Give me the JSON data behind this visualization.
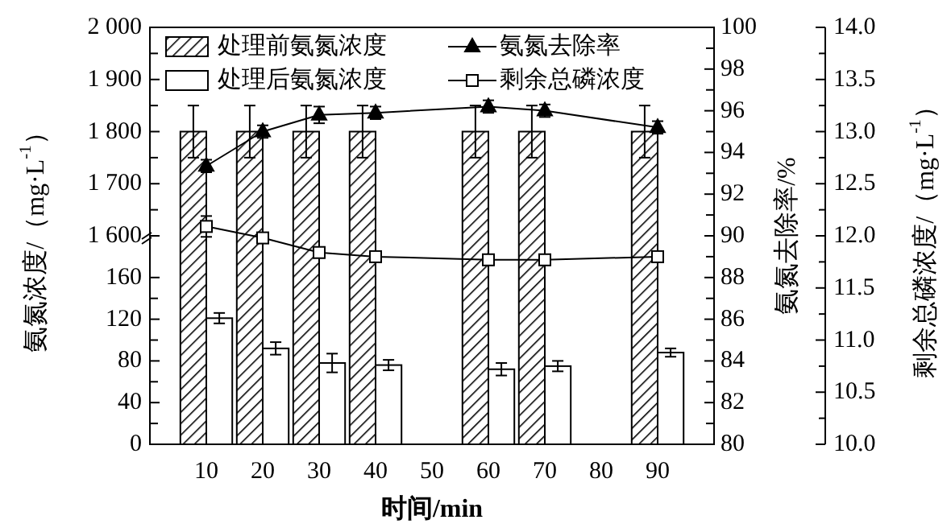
{
  "chart_data": [
    {
      "type": "bar",
      "ylabel": "氨氮浓度/（mg·L$^{-1}$）",
      "xlim": [
        0,
        100
      ],
      "x": [
        10,
        20,
        30,
        40,
        60,
        70,
        90
      ],
      "tick_labels": "y",
      "legend": "top",
      "ylim": [
        1600,
        2000
      ],
      "yticks": [
        {
          "value": 1600,
          "label": "1 600"
        },
        {
          "value": 1650,
          "label": null
        },
        {
          "value": 1700,
          "label": "1 700"
        },
        {
          "value": 1750,
          "label": null
        },
        {
          "value": 1800,
          "label": "1 800"
        },
        {
          "value": 1850,
          "label": null
        },
        {
          "value": 1900,
          "label": "1 900"
        },
        {
          "value": 1950,
          "label": null
        },
        {
          "value": 2000,
          "label": "2 000"
        }
      ],
      "series": [
        {
          "name": "处理前氨氮浓度",
          "color": "#000000",
          "values": [
            1800,
            1800,
            1800,
            1800,
            1800,
            1800,
            1800
          ],
          "errors": [
            50,
            50,
            50,
            50,
            50,
            50,
            50
          ]
        },
        {
          "color": "#ffffff",
          "values": [
            null,
            null,
            null,
            null,
            null,
            null,
            null
          ]
        }
      ]
    },
    {
      "type": "bar",
      "xlim": [
        0,
        100
      ],
      "x": [
        10,
        20,
        30,
        40,
        60,
        70,
        90
      ],
      "tick_labels": "y",
      "legend": "top",
      "ylim": [
        0,
        160
      ],
      "yticks": [
        0,
        {
          "value": 20,
          "label": null
        },
        40,
        {
          "value": 60,
          "label": null
        },
        80,
        {
          "value": 100,
          "label": null
        },
        120,
        {
          "value": 140,
          "label": null
        },
        160
      ],
      "series": [
        {
          "color": "#000000",
          "values": [
            null,
            null,
            null,
            null,
            null,
            null,
            null
          ]
        },
        {
          "name": "处理后氨氮浓度",
          "color": "#ffffff",
          "values": [
            121,
            92,
            78,
            76,
            72,
            75,
            88
          ],
          "errors": [
            5,
            6,
            9,
            5,
            6,
            5,
            4
          ]
        }
      ]
    },
    {
      "type": "line",
      "xlabel": "时间/min",
      "ylabel": "氨氮去除率/%",
      "y2label": "剩余总磷浓度/（mg·L$^{-1}$）",
      "legend": "top",
      "line_style": "solid",
      "x": [
        10,
        20,
        30,
        40,
        60,
        70,
        90
      ],
      "xlim": [
        0,
        100
      ],
      "xticks": [
        10,
        20,
        30,
        40,
        50,
        60,
        70,
        80,
        90
      ],
      "ylim": [
        80,
        100
      ],
      "yticks": [
        80,
        {
          "value": 81,
          "label": null
        },
        82,
        {
          "value": 83,
          "label": null
        },
        84,
        {
          "value": 85,
          "label": null
        },
        86,
        {
          "value": 87,
          "label": null
        },
        88,
        {
          "value": 89,
          "label": null
        },
        90,
        {
          "value": 91,
          "label": null
        },
        92,
        {
          "value": 93,
          "label": null
        },
        94,
        {
          "value": 95,
          "label": null
        },
        96,
        {
          "value": 97,
          "label": null
        },
        98,
        {
          "value": 99,
          "label": null
        },
        100
      ],
      "y2lim": [
        10,
        14
      ],
      "y2ticks": [
        {
          "value": 10,
          "label": "10.0"
        },
        {
          "value": 10.5,
          "label": "10.5"
        },
        {
          "value": 11,
          "label": "11.0"
        },
        {
          "value": 11.5,
          "label": "11.5"
        },
        {
          "value": 12,
          "label": "12.0"
        },
        {
          "value": 12.5,
          "label": "12.5"
        },
        {
          "value": 13,
          "label": "13.0"
        },
        {
          "value": 13.5,
          "label": "13.5"
        },
        {
          "value": 14,
          "label": "14.0"
        }
      ],
      "series": [
        {
          "name": "氨氮去除率",
          "marker": "triangle",
          "color": "#000000",
          "values": [
            93.35,
            95.0,
            95.8,
            95.9,
            96.2,
            96.0,
            95.2
          ],
          "errors": [
            0.3,
            0.3,
            0.4,
            0.3,
            0.3,
            0.3,
            0.3
          ]
        },
        {
          "name": "剩余总磷浓度",
          "axis": "y2",
          "marker": "square",
          "color": "#000000",
          "values": [
            12.09,
            11.98,
            11.84,
            11.8,
            11.77,
            11.77,
            11.8
          ],
          "errors": [
            0.1,
            0.05,
            0.05,
            0.05,
            0.05,
            0.05,
            0.05
          ]
        }
      ]
    }
  ]
}
